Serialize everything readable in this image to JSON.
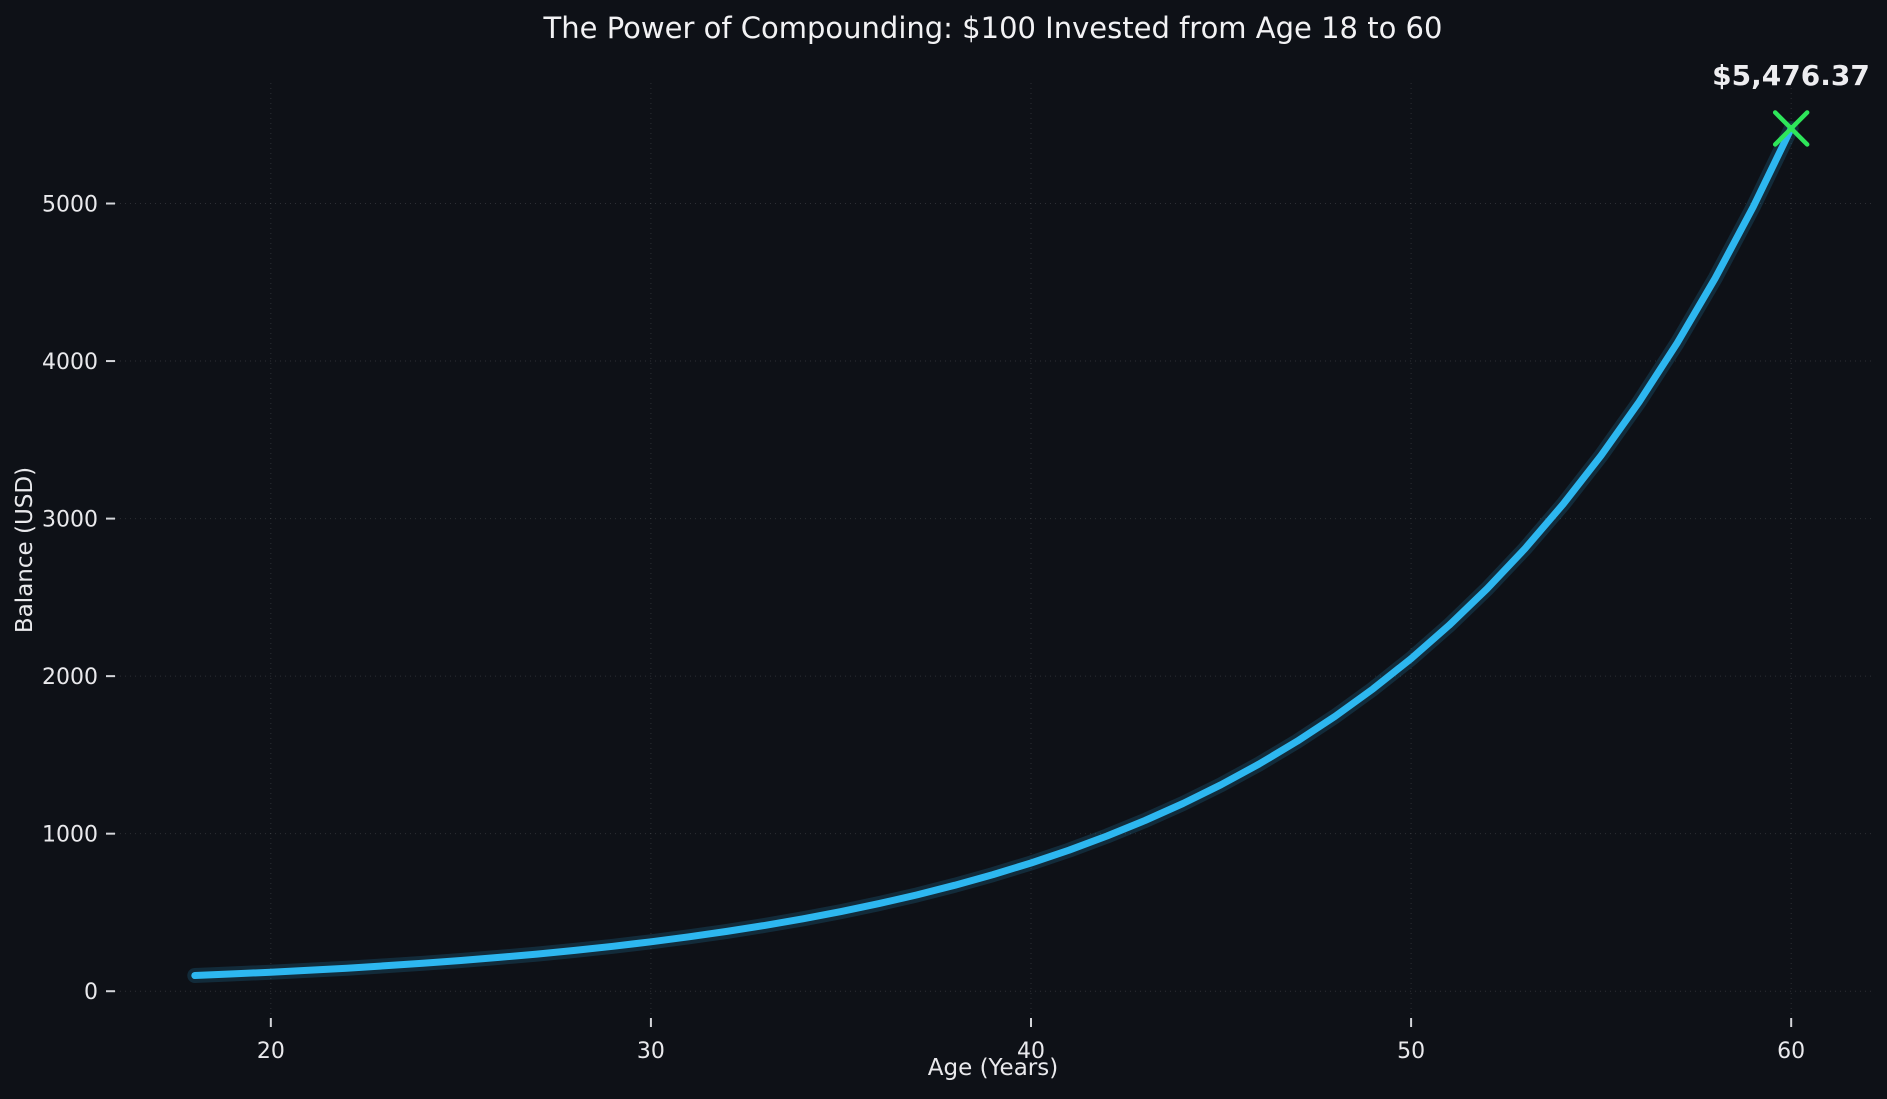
{
  "chart_data": {
    "type": "line",
    "title": "The Power of Compounding: $100 Invested from Age 18 to 60",
    "xlabel": "Age (Years)",
    "ylabel": "Balance (USD)",
    "x_ticks": [
      20,
      30,
      40,
      50,
      60
    ],
    "y_ticks": [
      0,
      1000,
      2000,
      3000,
      4000,
      5000
    ],
    "xlim": [
      15.9,
      62.1
    ],
    "ylim": [
      -170,
      5765
    ],
    "grid": "dotted major gridlines on both axes",
    "legend": "none",
    "background_color": "#0e1117",
    "series": [
      {
        "name": "Balance",
        "color": "#2db7f0",
        "line_width": 7,
        "x": [
          18,
          19,
          20,
          21,
          22,
          23,
          24,
          25,
          26,
          27,
          28,
          29,
          30,
          31,
          32,
          33,
          34,
          35,
          36,
          37,
          38,
          39,
          40,
          41,
          42,
          43,
          44,
          45,
          46,
          47,
          48,
          49,
          50,
          51,
          52,
          53,
          54,
          55,
          56,
          57,
          58,
          59,
          60
        ],
        "y": [
          100,
          110,
          121,
          133.1,
          146.41,
          161.05,
          177.16,
          194.87,
          214.36,
          235.79,
          259.37,
          285.31,
          313.84,
          345.23,
          379.75,
          417.72,
          459.5,
          505.45,
          555.99,
          611.59,
          672.75,
          740.02,
          814.03,
          895.43,
          984.97,
          1083.47,
          1191.82,
          1311.0,
          1442.1,
          1586.31,
          1744.94,
          1919.43,
          2111.38,
          2322.52,
          2554.77,
          2810.24,
          3091.27,
          3400.39,
          3740.43,
          4114.48,
          4525.93,
          4978.52,
          5476.37
        ]
      }
    ],
    "end_marker": {
      "shape": "x",
      "color": "#2ee65a",
      "x": 60,
      "y": 5476.37
    },
    "annotation": {
      "text": "$5,476.37",
      "color": "#2ee65a",
      "x": 60,
      "y": 5476.37
    }
  }
}
